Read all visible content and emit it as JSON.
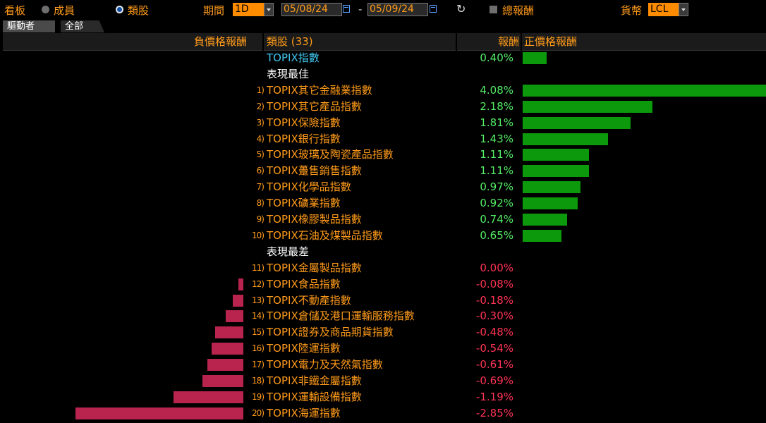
{
  "toolbar": {
    "board_label": "看板",
    "members_label": "成員",
    "sector_label": "類股",
    "period_label": "期間",
    "period_value": "1D",
    "date_from": "05/08/24",
    "date_sep": "-",
    "date_to": "05/09/24",
    "total_return_label": "總報酬",
    "currency_label": "貨幣",
    "currency_value": "LCL"
  },
  "tabs": [
    "驅動者",
    "全部"
  ],
  "header": {
    "neg_label": "負價格報酬",
    "sector_count": "類股 (33)",
    "return_label": "報酬",
    "pos_label": "正價格報酬"
  },
  "benchmark": {
    "name": "TOPIX指數",
    "value": "0.40%",
    "num": 0.4
  },
  "section_best": "表現最佳",
  "section_worst": "表現最差",
  "best": [
    {
      "rank": "1)",
      "name": "TOPIX其它金融業指數",
      "value": "4.08%",
      "num": 4.08
    },
    {
      "rank": "2)",
      "name": "TOPIX其它產品指數",
      "value": "2.18%",
      "num": 2.18
    },
    {
      "rank": "3)",
      "name": "TOPIX保險指數",
      "value": "1.81%",
      "num": 1.81
    },
    {
      "rank": "4)",
      "name": "TOPIX銀行指數",
      "value": "1.43%",
      "num": 1.43
    },
    {
      "rank": "5)",
      "name": "TOPIX玻璃及陶瓷產品指數",
      "value": "1.11%",
      "num": 1.11
    },
    {
      "rank": "6)",
      "name": "TOPIX躉售銷售指數",
      "value": "1.11%",
      "num": 1.11
    },
    {
      "rank": "7)",
      "name": "TOPIX化學品指數",
      "value": "0.97%",
      "num": 0.97
    },
    {
      "rank": "8)",
      "name": "TOPIX礦業指數",
      "value": "0.92%",
      "num": 0.92
    },
    {
      "rank": "9)",
      "name": "TOPIX橡膠製品指數",
      "value": "0.74%",
      "num": 0.74
    },
    {
      "rank": "10)",
      "name": "TOPIX石油及煤製品指數",
      "value": "0.65%",
      "num": 0.65
    }
  ],
  "worst": [
    {
      "rank": "11)",
      "name": "TOPIX金屬製品指數",
      "value": "0.00%",
      "num": 0.0
    },
    {
      "rank": "12)",
      "name": "TOPIX食品指數",
      "value": "-0.08%",
      "num": -0.08
    },
    {
      "rank": "13)",
      "name": "TOPIX不動產指數",
      "value": "-0.18%",
      "num": -0.18
    },
    {
      "rank": "14)",
      "name": "TOPIX倉儲及港口運輸服務指數",
      "value": "-0.30%",
      "num": -0.3
    },
    {
      "rank": "15)",
      "name": "TOPIX證券及商品期貨指數",
      "value": "-0.48%",
      "num": -0.48
    },
    {
      "rank": "16)",
      "name": "TOPIX陸運指數",
      "value": "-0.54%",
      "num": -0.54
    },
    {
      "rank": "17)",
      "name": "TOPIX電力及天然氣指數",
      "value": "-0.61%",
      "num": -0.61
    },
    {
      "rank": "18)",
      "name": "TOPIX非鐵金屬指數",
      "value": "-0.69%",
      "num": -0.69
    },
    {
      "rank": "19)",
      "name": "TOPIX運輸設備指數",
      "value": "-1.19%",
      "num": -1.19
    },
    {
      "rank": "20)",
      "name": "TOPIX海運指數",
      "value": "-2.85%",
      "num": -2.85
    }
  ],
  "colors": {
    "positive": "#0c9a0c",
    "negative": "#b8244e",
    "accent": "#ff9b1a"
  }
}
